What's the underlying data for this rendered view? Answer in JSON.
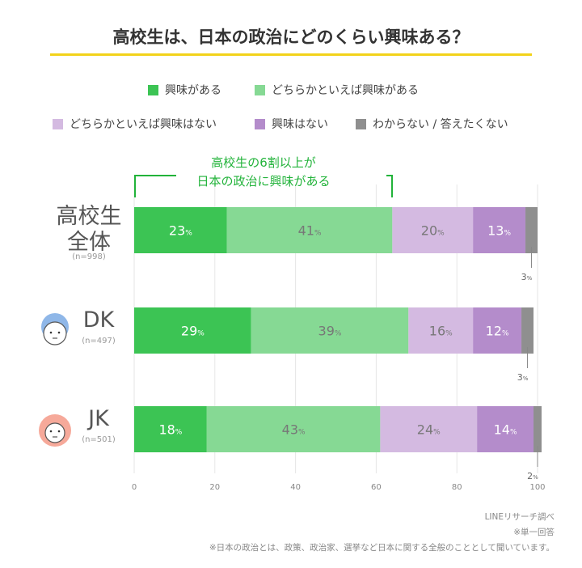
{
  "title": "高校生は、日本の政治にどのくらい興味ある？",
  "chart_data": {
    "type": "bar",
    "orientation": "horizontal",
    "stacked": true,
    "categories": [
      {
        "label": "高校生全体",
        "label_lines": [
          "高校生",
          "全体"
        ],
        "n": "(n=998)",
        "icon": ""
      },
      {
        "label": "DK",
        "label_lines": [
          "DK"
        ],
        "n": "(n=497)",
        "icon": "boy-face-icon"
      },
      {
        "label": "JK",
        "label_lines": [
          "JK"
        ],
        "n": "(n=501)",
        "icon": "girl-face-icon"
      }
    ],
    "series": [
      {
        "name": "興味がある",
        "color": "#3cc454",
        "label_color": "#ffffff",
        "values": [
          23,
          29,
          18
        ]
      },
      {
        "name": "どちらかといえば興味がある",
        "color": "#86d994",
        "label_color": "#777777",
        "values": [
          41,
          39,
          43
        ]
      },
      {
        "name": "どちらかといえば興味はない",
        "color": "#d4bae1",
        "label_color": "#777777",
        "values": [
          20,
          16,
          24
        ]
      },
      {
        "name": "興味はない",
        "color": "#b48ccb",
        "label_color": "#ffffff",
        "values": [
          13,
          12,
          14
        ]
      },
      {
        "name": "わからない / 答えたくない",
        "color": "#8f8f8f",
        "label_color": "#666666",
        "values": [
          3,
          3,
          2
        ]
      }
    ],
    "unit": "%",
    "xlim": [
      0,
      100
    ],
    "xticks": [
      0,
      20,
      40,
      60,
      80,
      100
    ],
    "grid": true,
    "legend": "top",
    "annotation": {
      "lines": [
        "高校生の6割以上が",
        "日本の政治に興味がある"
      ],
      "color": "#22b33a"
    }
  },
  "footnotes": [
    "LINEリサーチ調べ",
    "※単一回答",
    "※日本の政治とは、政策、政治家、選挙など日本に関する全般のこととして聞いています。"
  ]
}
